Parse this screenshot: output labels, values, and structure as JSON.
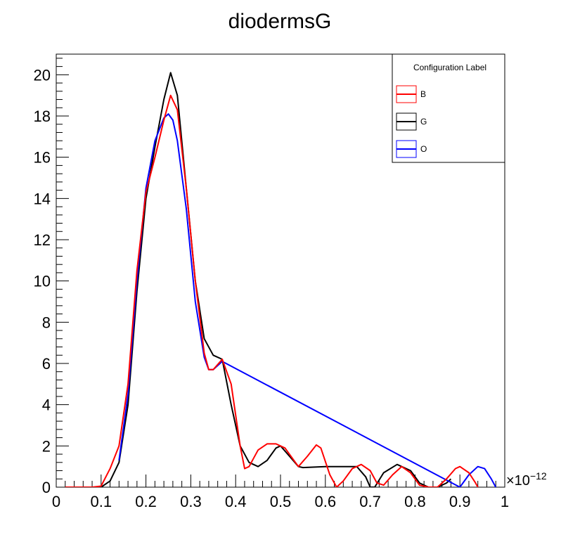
{
  "chart_data": {
    "type": "line",
    "title": "diodermsG",
    "xlabel": "",
    "ylabel": "",
    "x_exponent_label": "×10",
    "x_exponent_power": "−12",
    "xlim": [
      0,
      1
    ],
    "ylim": [
      0,
      21
    ],
    "x_ticks": [
      "0",
      "0.1",
      "0.2",
      "0.3",
      "0.4",
      "0.5",
      "0.6",
      "0.7",
      "0.8",
      "0.9",
      "1"
    ],
    "y_ticks": [
      "0",
      "2",
      "4",
      "6",
      "8",
      "10",
      "12",
      "14",
      "16",
      "18",
      "20"
    ],
    "grid": false,
    "legend": {
      "header": "Configuration Label",
      "placement": "top-right",
      "entries": [
        "B",
        "G",
        "O"
      ]
    },
    "series": [
      {
        "name": "G",
        "color": "#000000",
        "points": [
          [
            0.06,
            0
          ],
          [
            0.08,
            -0.1
          ],
          [
            0.09,
            -0.15
          ],
          [
            0.1,
            0
          ],
          [
            0.12,
            0.3
          ],
          [
            0.14,
            1.2
          ],
          [
            0.16,
            4
          ],
          [
            0.18,
            9.5
          ],
          [
            0.2,
            14
          ],
          [
            0.22,
            16.5
          ],
          [
            0.24,
            18.8
          ],
          [
            0.255,
            20.1
          ],
          [
            0.27,
            19
          ],
          [
            0.29,
            14.5
          ],
          [
            0.31,
            10
          ],
          [
            0.33,
            7.2
          ],
          [
            0.35,
            6.4
          ],
          [
            0.37,
            6.2
          ],
          [
            0.39,
            4
          ],
          [
            0.41,
            2
          ],
          [
            0.43,
            1.2
          ],
          [
            0.45,
            1
          ],
          [
            0.47,
            1.3
          ],
          [
            0.49,
            1.9
          ],
          [
            0.5,
            2
          ],
          [
            0.52,
            1.5
          ],
          [
            0.54,
            1
          ],
          [
            0.55,
            0.95
          ],
          [
            0.6,
            1
          ],
          [
            0.65,
            1
          ],
          [
            0.67,
            1
          ],
          [
            0.69,
            0.5
          ],
          [
            0.7,
            0
          ],
          [
            0.71,
            0
          ],
          [
            0.73,
            0.7
          ],
          [
            0.76,
            1.1
          ],
          [
            0.79,
            0.8
          ],
          [
            0.81,
            0.2
          ],
          [
            0.83,
            -0.1
          ],
          [
            0.85,
            -0.1
          ],
          [
            0.87,
            0.2
          ],
          [
            0.88,
            0.4
          ]
        ]
      },
      {
        "name": "O",
        "color": "#0000ff",
        "points": [
          [
            0.14,
            1.3
          ],
          [
            0.16,
            4.5
          ],
          [
            0.18,
            10
          ],
          [
            0.2,
            14.5
          ],
          [
            0.22,
            16.8
          ],
          [
            0.24,
            17.9
          ],
          [
            0.25,
            18.1
          ],
          [
            0.26,
            17.8
          ],
          [
            0.27,
            16.8
          ],
          [
            0.29,
            13.5
          ],
          [
            0.31,
            9
          ],
          [
            0.33,
            6.3
          ],
          [
            0.34,
            5.7
          ],
          [
            0.35,
            5.7
          ],
          [
            0.37,
            6.1
          ],
          [
            0.9,
            0
          ],
          [
            0.92,
            0.6
          ],
          [
            0.94,
            1
          ],
          [
            0.955,
            0.9
          ],
          [
            0.97,
            0.4
          ],
          [
            0.98,
            0
          ]
        ]
      },
      {
        "name": "B",
        "color": "#ff0000",
        "points": [
          [
            0.02,
            0
          ],
          [
            0.06,
            0
          ],
          [
            0.08,
            0
          ],
          [
            0.1,
            0.05
          ],
          [
            0.12,
            0.9
          ],
          [
            0.14,
            2
          ],
          [
            0.16,
            5
          ],
          [
            0.18,
            10.5
          ],
          [
            0.2,
            14.3
          ],
          [
            0.22,
            16
          ],
          [
            0.24,
            17.8
          ],
          [
            0.255,
            19
          ],
          [
            0.27,
            18.3
          ],
          [
            0.29,
            14.5
          ],
          [
            0.31,
            10
          ],
          [
            0.33,
            6.5
          ],
          [
            0.34,
            5.7
          ],
          [
            0.35,
            5.7
          ],
          [
            0.37,
            6.2
          ],
          [
            0.39,
            5
          ],
          [
            0.41,
            2
          ],
          [
            0.42,
            0.9
          ],
          [
            0.43,
            1
          ],
          [
            0.45,
            1.8
          ],
          [
            0.47,
            2.1
          ],
          [
            0.49,
            2.1
          ],
          [
            0.51,
            1.9
          ],
          [
            0.53,
            1.3
          ],
          [
            0.54,
            1
          ],
          [
            0.56,
            1.5
          ],
          [
            0.58,
            2.05
          ],
          [
            0.59,
            1.9
          ],
          [
            0.61,
            0.6
          ],
          [
            0.625,
            0
          ],
          [
            0.64,
            0.3
          ],
          [
            0.66,
            0.9
          ],
          [
            0.68,
            1.1
          ],
          [
            0.7,
            0.8
          ],
          [
            0.715,
            0.2
          ],
          [
            0.73,
            0.1
          ],
          [
            0.75,
            0.6
          ],
          [
            0.77,
            1
          ],
          [
            0.79,
            0.7
          ],
          [
            0.81,
            0.1
          ],
          [
            0.83,
            0
          ],
          [
            0.85,
            0
          ],
          [
            0.87,
            0.4
          ],
          [
            0.89,
            0.9
          ],
          [
            0.9,
            1
          ],
          [
            0.92,
            0.7
          ],
          [
            0.935,
            0.2
          ],
          [
            0.94,
            0
          ]
        ]
      }
    ]
  }
}
